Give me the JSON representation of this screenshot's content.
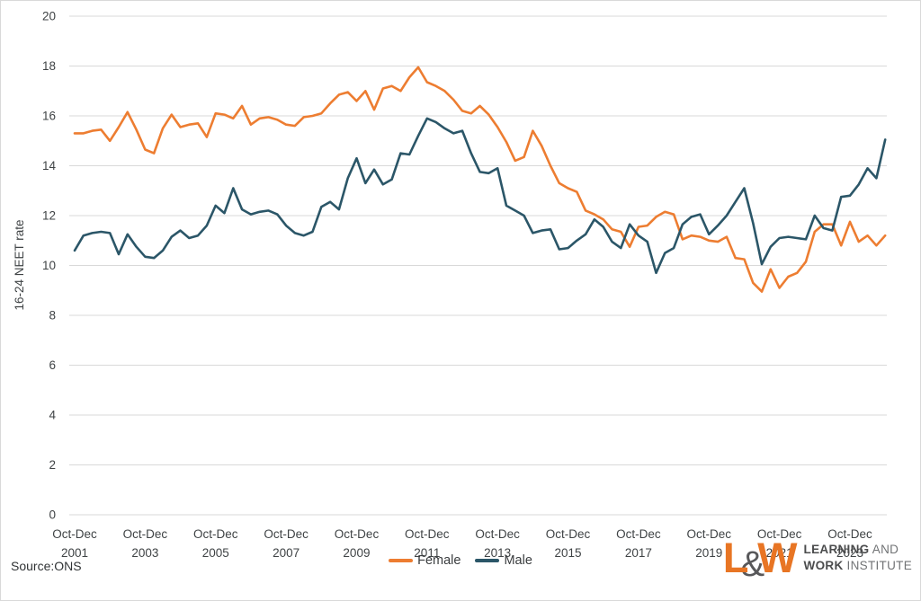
{
  "source": {
    "text": "Source:ONS"
  },
  "logo": {
    "mark_l": "L",
    "mark_amp": "&",
    "mark_w": "W",
    "line1_bold": "LEARNING",
    "line1_rest": " AND",
    "line2_bold": "WORK",
    "line2_rest": " INSTITUTE"
  },
  "chart_data": {
    "type": "line",
    "title": "",
    "ylabel": "16-24 NEET rate",
    "xlabel": "",
    "ylim": [
      0,
      20
    ],
    "y_ticks": [
      0,
      2,
      4,
      6,
      8,
      10,
      12,
      14,
      16,
      18,
      20
    ],
    "grid": "horizontal",
    "gridline_color": "#d9d9d9",
    "legend_position": "bottom-center",
    "x_unit": "quarter",
    "x_start": "Oct-Dec 2001",
    "x_end": "Oct-Dec 2024",
    "x_ticks": [
      {
        "period": "Oct-Dec",
        "year": "2001"
      },
      {
        "period": "Oct-Dec",
        "year": "2003"
      },
      {
        "period": "Oct-Dec",
        "year": "2005"
      },
      {
        "period": "Oct-Dec",
        "year": "2007"
      },
      {
        "period": "Oct-Dec",
        "year": "2009"
      },
      {
        "period": "Oct-Dec",
        "year": "2011"
      },
      {
        "period": "Oct-Dec",
        "year": "2013"
      },
      {
        "period": "Oct-Dec",
        "year": "2015"
      },
      {
        "period": "Oct-Dec",
        "year": "2017"
      },
      {
        "period": "Oct-Dec",
        "year": "2019"
      },
      {
        "period": "Oct-Dec",
        "year": "2021"
      },
      {
        "period": "Oct-Dec",
        "year": "2023"
      }
    ],
    "series": [
      {
        "name": "Female",
        "color": "#ed7d31",
        "values": [
          15.3,
          15.3,
          15.4,
          15.45,
          15.0,
          15.55,
          16.15,
          15.45,
          14.65,
          14.5,
          15.5,
          16.05,
          15.55,
          15.65,
          15.7,
          15.15,
          16.1,
          16.05,
          15.9,
          16.4,
          15.65,
          15.9,
          15.95,
          15.85,
          15.65,
          15.6,
          15.95,
          16.0,
          16.1,
          16.5,
          16.85,
          16.95,
          16.6,
          17.0,
          16.25,
          17.1,
          17.2,
          17.0,
          17.55,
          17.95,
          17.35,
          17.2,
          17.0,
          16.65,
          16.2,
          16.1,
          16.4,
          16.05,
          15.55,
          14.95,
          14.2,
          14.35,
          15.4,
          14.8,
          14.0,
          13.3,
          13.1,
          12.95,
          12.2,
          12.05,
          11.85,
          11.45,
          11.35,
          10.75,
          11.55,
          11.6,
          11.95,
          12.15,
          12.05,
          11.05,
          11.2,
          11.15,
          11.0,
          10.95,
          11.15,
          10.3,
          10.25,
          9.3,
          8.95,
          9.85,
          9.1,
          9.55,
          9.7,
          10.15,
          11.35,
          11.65,
          11.65,
          10.8,
          11.75,
          10.95,
          11.2,
          10.8,
          11.2
        ]
      },
      {
        "name": "Male",
        "color": "#2b5668",
        "values": [
          10.6,
          11.2,
          11.3,
          11.35,
          11.3,
          10.45,
          11.25,
          10.75,
          10.35,
          10.3,
          10.6,
          11.15,
          11.4,
          11.1,
          11.2,
          11.6,
          12.4,
          12.1,
          13.1,
          12.25,
          12.05,
          12.15,
          12.2,
          12.05,
          11.6,
          11.3,
          11.2,
          11.35,
          12.35,
          12.55,
          12.25,
          13.5,
          14.3,
          13.3,
          13.85,
          13.25,
          13.45,
          14.5,
          14.45,
          15.2,
          15.9,
          15.75,
          15.5,
          15.3,
          15.4,
          14.5,
          13.75,
          13.7,
          13.9,
          12.4,
          12.2,
          12.0,
          11.3,
          11.4,
          11.45,
          10.65,
          10.7,
          11.0,
          11.25,
          11.85,
          11.55,
          10.95,
          10.7,
          11.65,
          11.2,
          10.95,
          9.7,
          10.5,
          10.7,
          11.65,
          11.95,
          12.05,
          11.25,
          11.6,
          12.0,
          12.55,
          13.1,
          11.7,
          10.05,
          10.75,
          11.1,
          11.15,
          11.1,
          11.05,
          12.0,
          11.5,
          11.4,
          12.75,
          12.8,
          13.25,
          13.9,
          13.5,
          15.05
        ]
      }
    ]
  }
}
